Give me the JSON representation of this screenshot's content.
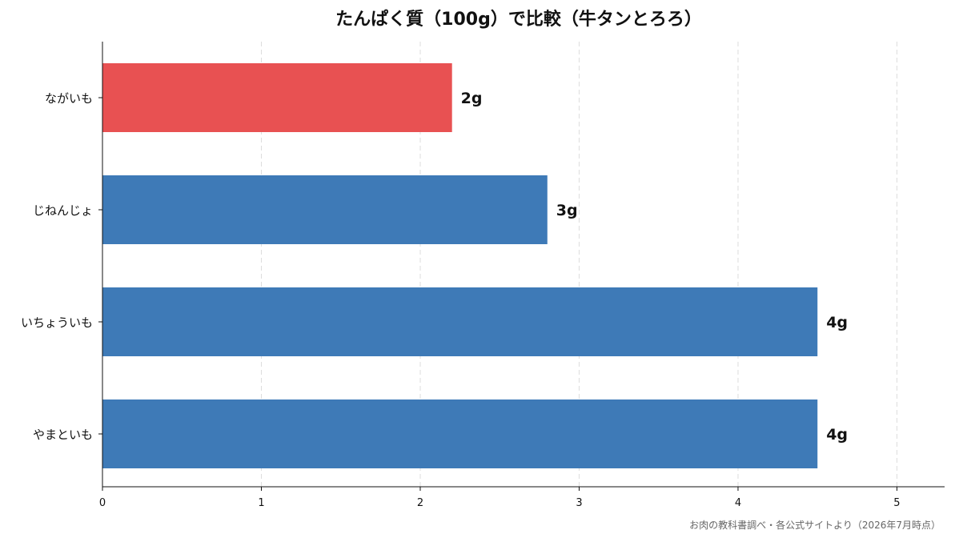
{
  "chart_data": {
    "type": "bar",
    "orientation": "horizontal",
    "title": "たんぱく質（100g）で比較（牛タンとろろ）",
    "categories": [
      "ながいも",
      "じねんじょ",
      "いちょういも",
      "やまといも"
    ],
    "values": [
      2.2,
      2.8,
      4.5,
      4.5
    ],
    "data_labels": [
      "2g",
      "3g",
      "4g",
      "4g"
    ],
    "highlight_index": 0,
    "colors": {
      "highlight": "#e85152",
      "default": "#3e7ab7",
      "grid": "#dddddd",
      "axis": "#111111"
    },
    "xlim": [
      0,
      5.3
    ],
    "xticks": [
      0,
      1,
      2,
      3,
      4,
      5
    ],
    "xtick_labels": [
      "0",
      "1",
      "2",
      "3",
      "4",
      "5"
    ],
    "grid": "vertical-dashed",
    "xlabel": "",
    "ylabel": "",
    "source_note": "お肉の教科書調べ・各公式サイトより（2026年7月時点）"
  }
}
